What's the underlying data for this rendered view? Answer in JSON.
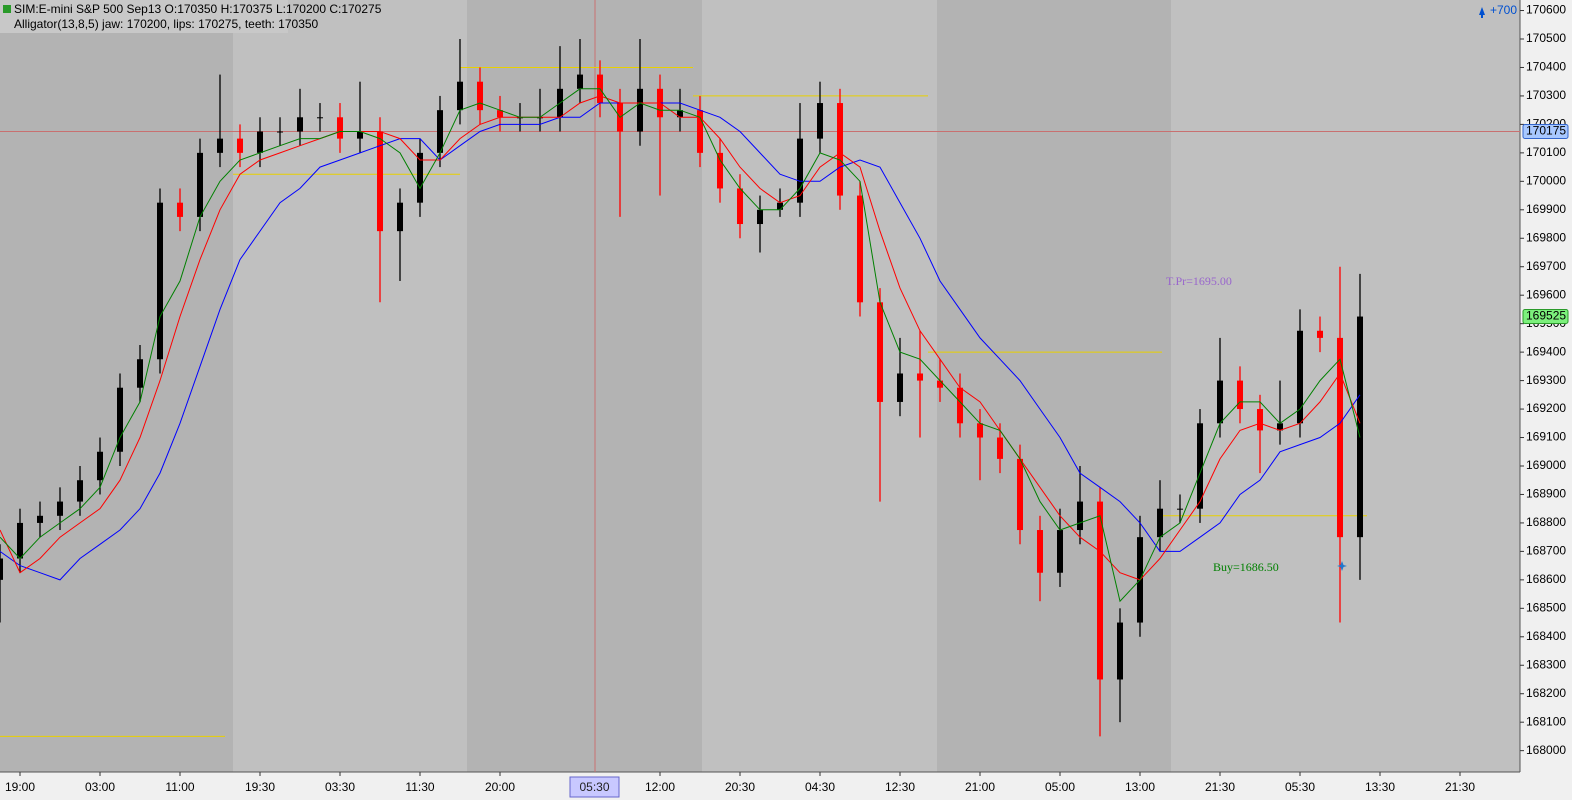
{
  "chart_data": {
    "type": "candlestick",
    "title": "SIM:E-mini S&P 500 Sep13 O:170350 H:170375 L:170200 C:170275",
    "subtitle": "Alligator(13,8,5) jaw: 170200, lips: 170275, teeth: 170350",
    "categories": [
      null,
      "19:00",
      null,
      null,
      null,
      "03:00",
      null,
      null,
      null,
      "11:00",
      null,
      null,
      null,
      "19:30",
      null,
      null,
      null,
      "03:30",
      null,
      null,
      null,
      "11:30",
      null,
      null,
      null,
      "20:00",
      null,
      null,
      null,
      null,
      null,
      null,
      null,
      "12:00",
      null,
      null,
      null,
      "20:30",
      null,
      null,
      null,
      "04:30",
      null,
      null,
      null,
      "12:30",
      null,
      null,
      null,
      "21:00",
      null,
      null,
      null,
      "05:00",
      null,
      null,
      null,
      "13:00",
      null,
      null,
      null,
      "21:30",
      null,
      null,
      null,
      "05:30",
      null,
      null,
      null,
      "13:30",
      null,
      null,
      null,
      "21:30",
      null,
      null
    ],
    "open": [
      168600,
      168675,
      168800,
      168825,
      168875,
      168950,
      169050,
      169275,
      169375,
      169925,
      169875,
      170100,
      170150,
      170100,
      170175,
      170175,
      170225,
      170225,
      170150,
      170175,
      169825,
      169925,
      170100,
      170250,
      170350,
      170250,
      170225,
      170225,
      170225,
      170325,
      170375,
      170275,
      170175,
      170325,
      170225,
      170250,
      170100,
      169975,
      169850,
      169900,
      169925,
      170150,
      170275,
      169950,
      169575,
      169225,
      169325,
      169300,
      169275,
      169150,
      169100,
      169025,
      168775,
      168625,
      168775,
      168875,
      168250,
      168450,
      168750,
      168850,
      168850,
      169150,
      169300,
      169200,
      169125,
      169150,
      169475,
      169450,
      168750,
      null,
      null,
      null,
      null,
      null,
      null,
      null
    ],
    "high": [
      168725,
      168850,
      168875,
      168925,
      169000,
      169100,
      169325,
      169425,
      169975,
      169975,
      170150,
      170375,
      170200,
      170225,
      170225,
      170325,
      170275,
      170275,
      170350,
      170225,
      169975,
      170150,
      170300,
      170500,
      170400,
      170300,
      170275,
      170325,
      170475,
      170500,
      170425,
      170325,
      170500,
      170375,
      170325,
      170300,
      170150,
      170025,
      169950,
      169975,
      170275,
      170350,
      170325,
      170000,
      169625,
      169450,
      169475,
      169375,
      169325,
      169200,
      169150,
      169075,
      168825,
      168850,
      169000,
      168925,
      168500,
      168825,
      168950,
      168900,
      169200,
      169450,
      169350,
      169250,
      169300,
      169550,
      169525,
      169700,
      169675,
      null,
      null,
      null,
      null,
      null,
      null,
      null
    ],
    "low": [
      168450,
      168625,
      168750,
      168775,
      168825,
      168900,
      169000,
      169225,
      169325,
      169825,
      169825,
      170050,
      170050,
      170050,
      170125,
      170125,
      170175,
      170100,
      170100,
      169575,
      169650,
      169875,
      170050,
      170200,
      170200,
      170175,
      170175,
      170175,
      170175,
      170275,
      170225,
      169875,
      170125,
      169950,
      170175,
      170050,
      169925,
      169800,
      169750,
      169875,
      169875,
      170100,
      169900,
      169525,
      168875,
      169175,
      169100,
      169225,
      169100,
      168950,
      168975,
      168725,
      168525,
      168575,
      168725,
      168050,
      168100,
      168400,
      168700,
      168800,
      168800,
      169100,
      169150,
      168975,
      169075,
      169100,
      169400,
      168450,
      168600,
      null,
      null,
      null,
      null,
      null,
      null,
      null
    ],
    "close": [
      168675,
      168800,
      168825,
      168875,
      168950,
      169050,
      169275,
      169375,
      169925,
      169875,
      170100,
      170150,
      170100,
      170175,
      170175,
      170225,
      170225,
      170150,
      170175,
      169825,
      169925,
      170100,
      170250,
      170350,
      170250,
      170225,
      170225,
      170225,
      170325,
      170375,
      170275,
      170175,
      170325,
      170225,
      170250,
      170100,
      169975,
      169850,
      169900,
      169925,
      170150,
      170275,
      169950,
      169575,
      169225,
      169325,
      169300,
      169275,
      169150,
      169100,
      169025,
      168775,
      168625,
      168775,
      168875,
      168250,
      168450,
      168750,
      168850,
      168850,
      169150,
      169300,
      169200,
      169125,
      169150,
      169475,
      169450,
      168750,
      169525,
      null,
      null,
      null,
      null,
      null,
      null,
      null
    ],
    "up_color": "#000000",
    "down_color": "#ff0000",
    "indicators": {
      "jaw": {
        "color": "#0000ff",
        "values": [
          168700,
          168650,
          168625,
          168600,
          168675,
          168725,
          168775,
          168850,
          168975,
          169150,
          169350,
          169550,
          169725,
          169825,
          169925,
          169975,
          170050,
          170075,
          170100,
          170125,
          170150,
          170150,
          170075,
          170125,
          170175,
          170200,
          170200,
          170200,
          170225,
          170225,
          170275,
          170275,
          170275,
          170275,
          170275,
          170250,
          170225,
          170175,
          170100,
          170025,
          170000,
          170000,
          170050,
          170075,
          170050,
          169925,
          169800,
          169650,
          169550,
          169450,
          169375,
          169300,
          169200,
          169100,
          168975,
          168925,
          168875,
          168800,
          168700,
          168700,
          168750,
          168800,
          168900,
          168950,
          169050,
          169075,
          169100,
          169150,
          169250,
          null,
          null,
          null,
          null,
          null,
          null,
          null
        ]
      },
      "teeth": {
        "color": "#ff0000",
        "values": [
          168775,
          168625,
          168675,
          168750,
          168800,
          168850,
          168950,
          169100,
          169300,
          169525,
          169725,
          169900,
          170025,
          170075,
          170100,
          170125,
          170150,
          170175,
          170175,
          170175,
          170150,
          170075,
          170075,
          170150,
          170200,
          170225,
          170225,
          170225,
          170225,
          170275,
          170300,
          170275,
          170275,
          170275,
          170225,
          170225,
          170150,
          170050,
          169975,
          169925,
          169950,
          170050,
          170100,
          170050,
          169825,
          169625,
          169475,
          169375,
          169275,
          169225,
          169125,
          169025,
          168925,
          168825,
          168750,
          168700,
          168625,
          168600,
          168675,
          168775,
          168875,
          169025,
          169125,
          169150,
          169125,
          169150,
          169225,
          169325,
          169150,
          null,
          null,
          null,
          null,
          null,
          null,
          null
        ]
      },
      "lips": {
        "color": "#008000",
        "values": [
          168750,
          168675,
          168750,
          168800,
          168850,
          168925,
          169100,
          169225,
          169525,
          169650,
          169875,
          170000,
          170075,
          170100,
          170125,
          170150,
          170150,
          170175,
          170175,
          170150,
          170100,
          169975,
          170100,
          170250,
          170275,
          170250,
          170225,
          170225,
          170275,
          170325,
          170325,
          170225,
          170275,
          170250,
          170250,
          170225,
          170075,
          169975,
          169900,
          169900,
          169975,
          170100,
          170075,
          170000,
          169575,
          169400,
          169375,
          169300,
          169225,
          169150,
          169125,
          169025,
          168875,
          168775,
          168800,
          168825,
          168525,
          168600,
          168750,
          168800,
          168975,
          169150,
          169225,
          169225,
          169150,
          169200,
          169300,
          169375,
          169100,
          null,
          null,
          null,
          null,
          null,
          null,
          null
        ]
      }
    },
    "levels": [
      170400,
      170300,
      170025,
      169400,
      168825,
      168050
    ],
    "level_color": "#e8d000",
    "annotations": [
      {
        "text": "T.Pr=1695.00",
        "color": "#9966cc"
      },
      {
        "text": "Buy=1686.50",
        "color": "#008000"
      }
    ],
    "crosshair": {
      "price": 170175,
      "time": "05:30"
    },
    "last_price": 169525,
    "scroll_label": "+700",
    "ylim": [
      167925,
      170637
    ],
    "yticks": [
      168000,
      168100,
      168200,
      168300,
      168400,
      168500,
      168600,
      168700,
      168800,
      168900,
      169000,
      169100,
      169200,
      169300,
      169400,
      169500,
      169600,
      169700,
      169800,
      169900,
      170000,
      170100,
      170200,
      170300,
      170400,
      170500,
      170600
    ]
  }
}
